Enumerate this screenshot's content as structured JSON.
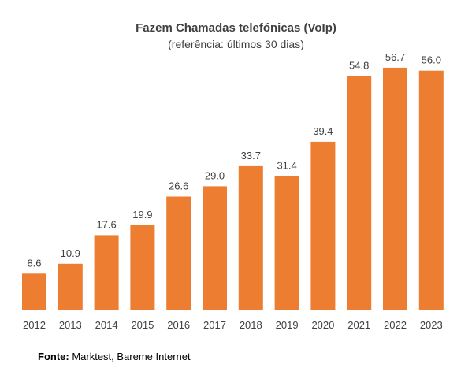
{
  "chart_data": {
    "type": "bar",
    "title": "Fazem Chamadas telefónicas (VoIp)",
    "subtitle": "(referência: últimos 30 dias)",
    "categories": [
      "2012",
      "2013",
      "2014",
      "2015",
      "2016",
      "2017",
      "2018",
      "2019",
      "2020",
      "2021",
      "2022",
      "2023"
    ],
    "values": [
      8.6,
      10.9,
      17.6,
      19.9,
      26.6,
      29.0,
      33.7,
      31.4,
      39.4,
      54.8,
      56.7,
      56.0
    ],
    "value_labels": [
      "8.6",
      "10.9",
      "17.6",
      "19.9",
      "26.6",
      "29.0",
      "33.7",
      "31.4",
      "39.4",
      "54.8",
      "56.7",
      "56.0"
    ],
    "xlabel": "",
    "ylabel": "",
    "ylim": [
      0,
      60
    ],
    "grid": false,
    "legend": "none",
    "bar_color": "#ED7D31"
  },
  "source": {
    "label": "Fonte:",
    "text": " Marktest, Bareme Internet"
  }
}
